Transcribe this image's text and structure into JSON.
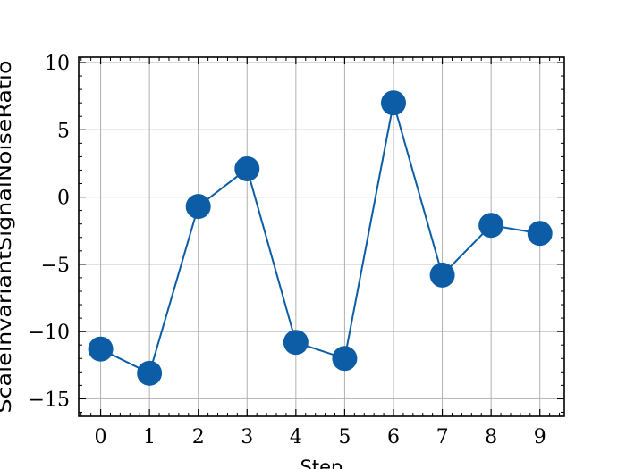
{
  "chart_data": {
    "type": "line",
    "xlabel": "Step",
    "ylabel": "ScaleInvariantSignalNoiseRatio",
    "x": [
      0,
      1,
      2,
      3,
      4,
      5,
      6,
      7,
      8,
      9
    ],
    "series": [
      {
        "values": [
          -11.3,
          -13.1,
          -0.7,
          2.1,
          -10.8,
          -12.0,
          7.0,
          -5.8,
          -2.1,
          -2.7
        ],
        "color": "#0C5DA5"
      }
    ],
    "xlim": [
      -0.45,
      9.5
    ],
    "ylim": [
      -16.3,
      10.4
    ],
    "xticks": [
      0,
      1,
      2,
      3,
      4,
      5,
      6,
      7,
      8,
      9
    ],
    "xtick_labels": [
      "0",
      "1",
      "2",
      "3",
      "4",
      "5",
      "6",
      "7",
      "8",
      "9"
    ],
    "yticks": [
      -15,
      -10,
      -5,
      0,
      5,
      10
    ],
    "ytick_labels": [
      "−15",
      "−10",
      "−5",
      "0",
      "5",
      "10"
    ],
    "grid": true,
    "legend": "none"
  }
}
